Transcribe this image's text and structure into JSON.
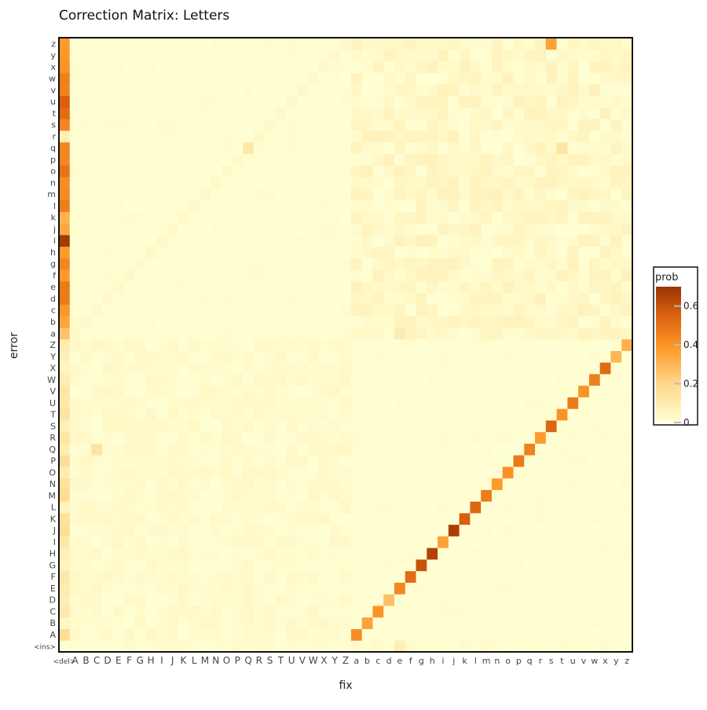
{
  "chart_data": {
    "type": "heatmap",
    "title": "Correction Matrix: Letters",
    "xlabel": "fix",
    "ylabel": "error",
    "x_categories": [
      "<del>",
      "A",
      "B",
      "C",
      "D",
      "E",
      "F",
      "G",
      "H",
      "I",
      "J",
      "K",
      "L",
      "M",
      "N",
      "O",
      "P",
      "Q",
      "R",
      "S",
      "T",
      "U",
      "V",
      "W",
      "X",
      "Y",
      "Z",
      "a",
      "b",
      "c",
      "d",
      "e",
      "f",
      "g",
      "h",
      "i",
      "j",
      "k",
      "l",
      "m",
      "n",
      "o",
      "p",
      "q",
      "r",
      "s",
      "t",
      "u",
      "v",
      "w",
      "x",
      "y",
      "z"
    ],
    "y_categories": [
      "<ins>",
      "A",
      "B",
      "C",
      "D",
      "E",
      "F",
      "G",
      "H",
      "I",
      "J",
      "K",
      "L",
      "M",
      "N",
      "O",
      "P",
      "Q",
      "R",
      "S",
      "T",
      "U",
      "V",
      "W",
      "X",
      "Y",
      "Z",
      "a",
      "b",
      "c",
      "d",
      "e",
      "f",
      "g",
      "h",
      "i",
      "j",
      "k",
      "l",
      "m",
      "n",
      "o",
      "p",
      "q",
      "r",
      "s",
      "t",
      "u",
      "v",
      "w",
      "x",
      "y",
      "z"
    ],
    "legend": {
      "title": "prob",
      "ticks": [
        0,
        0.2,
        0.4,
        0.6
      ],
      "tick_labels": [
        "0",
        "0.2",
        "0.4",
        "0.6"
      ],
      "max": 0.7,
      "placement": "right",
      "colors": [
        "#ffffd4",
        "#fed98e",
        "#fe9929",
        "#d95f0e",
        "#993404"
      ]
    },
    "grid": false,
    "del_column": {
      "upper_rows": [
        0.26,
        0.35,
        0.39,
        0.48,
        0.48,
        0.38,
        0.44,
        0.38,
        0.68,
        0.34,
        0.31,
        0.47,
        0.43,
        0.42,
        0.5,
        0.44,
        0.44,
        0.08,
        0.44,
        0.52,
        0.56,
        0.45,
        0.46,
        0.4,
        0.39,
        0.38
      ],
      "lower_rows_range": [
        0.03,
        0.18
      ]
    },
    "diagonal_uppercase_to_lowercase": [
      0.42,
      0.36,
      0.4,
      0.27,
      0.44,
      0.52,
      0.6,
      0.65,
      0.36,
      0.66,
      0.56,
      0.54,
      0.47,
      0.38,
      0.41,
      0.48,
      0.46,
      0.38,
      0.54,
      0.4,
      0.48,
      0.4,
      0.46,
      0.52,
      0.3,
      0.32
    ],
    "diagonal_note": "Uppercase error rows map to their lowercase fix column; strongest cells cluster at g, h, j, k, l (~0.55-0.65)",
    "notable_cells": [
      {
        "error": "z",
        "fix": "s",
        "value": 0.36
      },
      {
        "error": "q",
        "fix": "t",
        "value": 0.14
      },
      {
        "error": "q",
        "fix": "Q",
        "value": 0.12
      },
      {
        "error": "Q",
        "fix": "C",
        "value": 0.14
      },
      {
        "error": "a",
        "fix": "e",
        "value": 0.1
      },
      {
        "error": "<ins>",
        "fix": "e",
        "value": 0.08
      }
    ]
  }
}
